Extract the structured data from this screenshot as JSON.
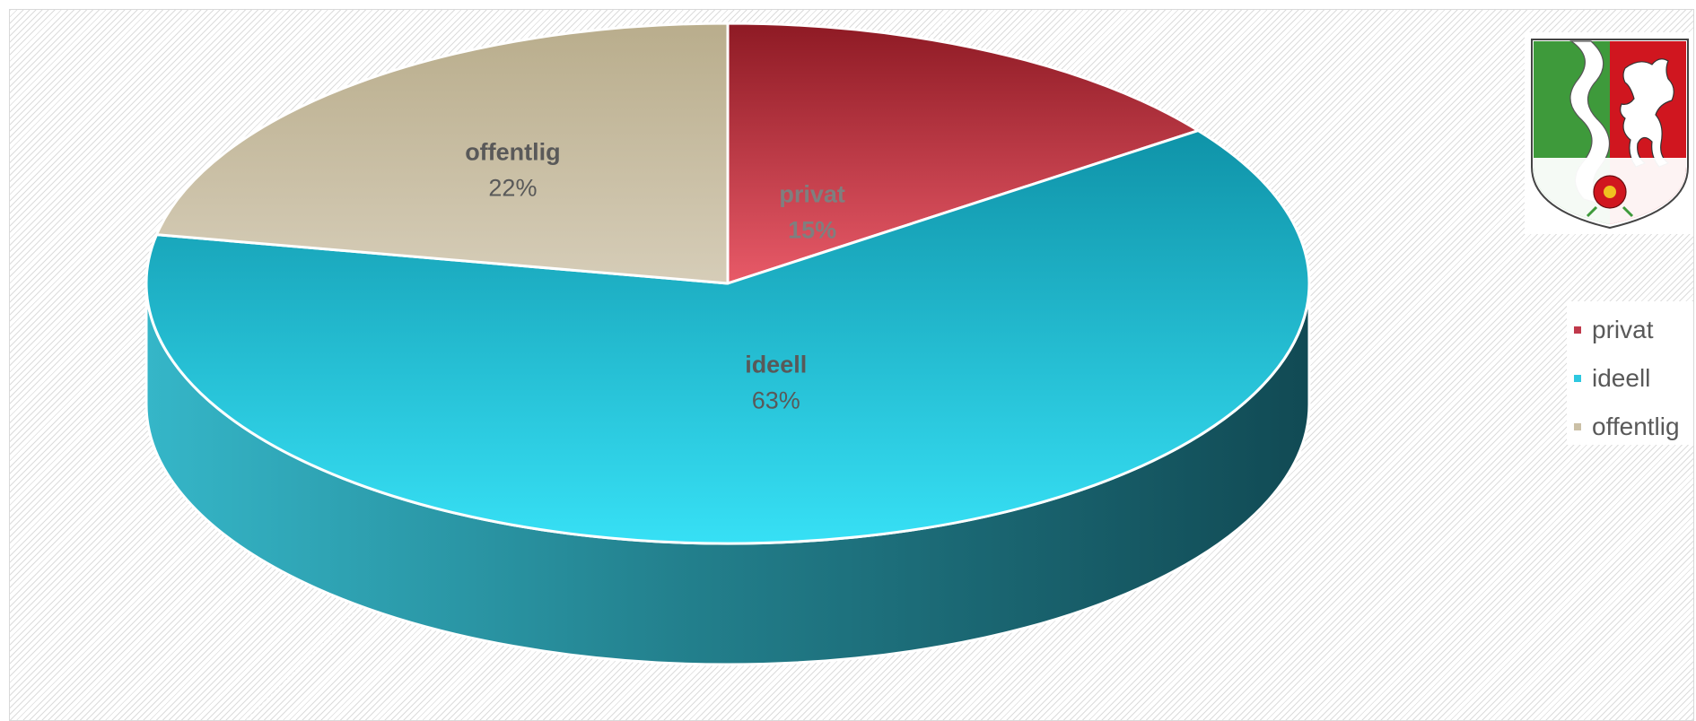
{
  "chart_data": {
    "type": "pie",
    "three_d": true,
    "title": "",
    "categories": [
      "privat",
      "ideell",
      "offentlig"
    ],
    "values": [
      15,
      63,
      22
    ],
    "value_labels": [
      "15%",
      "63%",
      "22%"
    ],
    "colors": [
      "#c0394b",
      "#2ec8e0",
      "#cbc0a6"
    ],
    "legend": {
      "position": "right",
      "entries": [
        "privat",
        "ideell",
        "offentlig"
      ]
    }
  },
  "emblem": {
    "icon": "nrw-coat-of-arms-icon"
  }
}
